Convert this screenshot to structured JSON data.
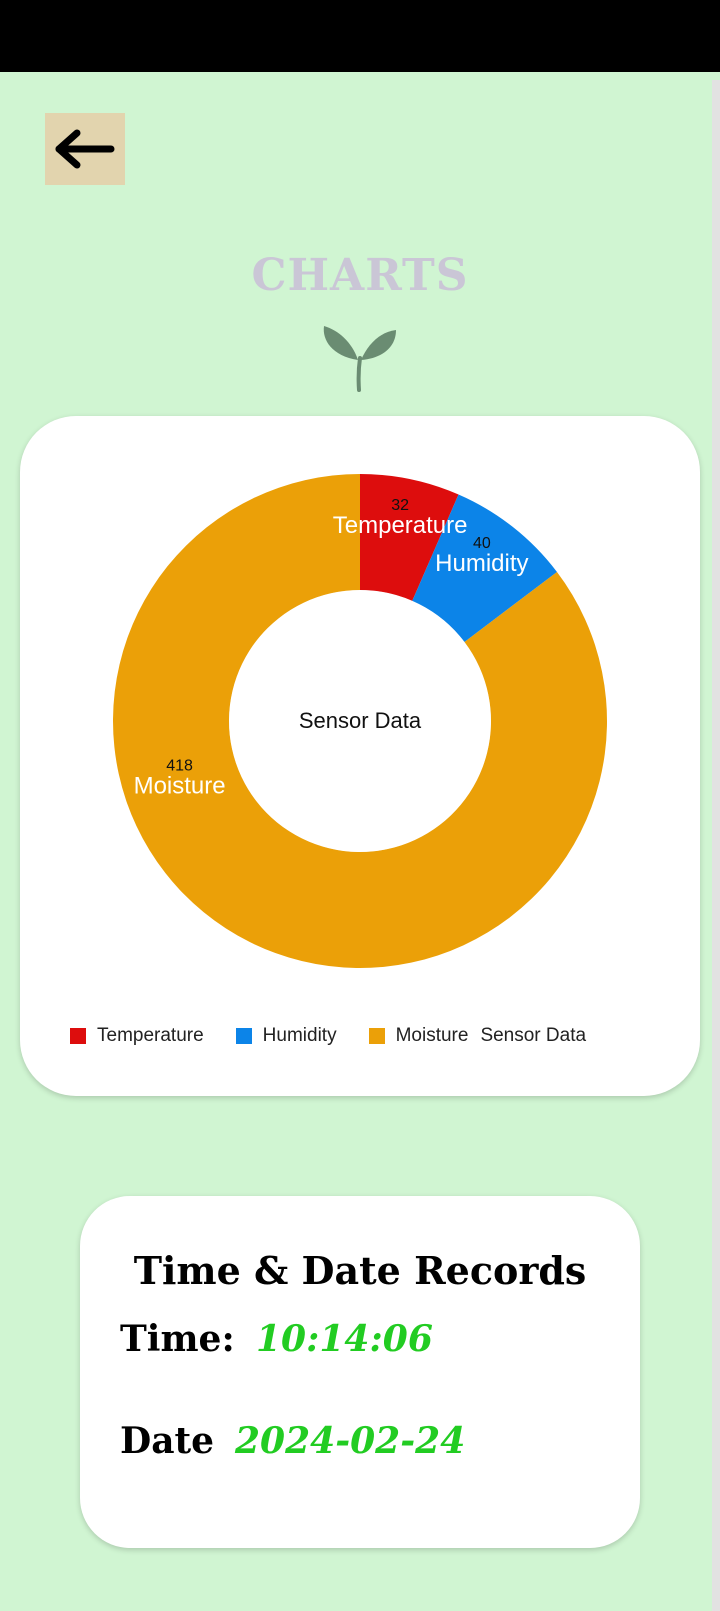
{
  "header": {
    "title": "CHARTS",
    "back_icon": "arrow-left-icon",
    "logo_icon": "sprout-icon"
  },
  "chart_data": {
    "type": "pie",
    "title": "",
    "center_label": "Sensor Data",
    "legend_extra": "Sensor Data",
    "legend_position": "bottom",
    "series": [
      {
        "name": "Temperature",
        "value": 32,
        "color": "#dd0d0d"
      },
      {
        "name": "Humidity",
        "value": 40,
        "color": "#0c84e8"
      },
      {
        "name": "Moisture",
        "value": 418,
        "color": "#eba008"
      }
    ]
  },
  "records": {
    "title": "Time & Date Records",
    "time_label": "Time:",
    "time_value": "10:14:06",
    "date_label": "Date",
    "date_value": "2024-02-24"
  },
  "colors": {
    "background": "#d0f5d2",
    "accent_value": "#22cc22",
    "back_button": "#e2d4ae"
  }
}
